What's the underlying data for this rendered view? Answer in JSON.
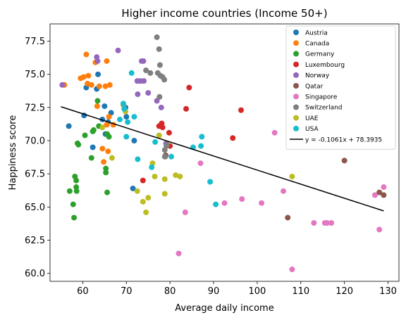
{
  "chart_data": {
    "type": "scatter",
    "title": "Higher income countries (Income 50+)",
    "xlabel": "Average daily income",
    "ylabel": "Happiness score",
    "xlim": [
      52.5,
      132.5
    ],
    "ylim": [
      59.4,
      78.8
    ],
    "xticks": [
      60,
      70,
      80,
      90,
      100,
      110,
      120,
      130
    ],
    "yticks": [
      60.0,
      62.5,
      65.0,
      67.5,
      70.0,
      72.5,
      75.0,
      77.5
    ],
    "grid": false,
    "legend_position": "top-right",
    "series": [
      {
        "name": "Austria",
        "color": "#1f77b4",
        "points": [
          [
            56.8,
            71.1
          ],
          [
            60.3,
            71.9
          ],
          [
            60.8,
            74.0
          ],
          [
            62.3,
            69.5
          ],
          [
            63.2,
            73.9
          ],
          [
            63.5,
            75.0
          ],
          [
            64.5,
            71.6
          ],
          [
            65.0,
            72.6
          ],
          [
            65.2,
            70.5
          ],
          [
            65.8,
            71.4
          ],
          [
            66.5,
            72.1
          ],
          [
            69.8,
            72.5
          ],
          [
            70.0,
            71.8
          ],
          [
            71.5,
            66.4
          ],
          [
            71.8,
            70.0
          ]
        ]
      },
      {
        "name": "Canada",
        "color": "#ff7f0e",
        "points": [
          [
            55.8,
            74.2
          ],
          [
            59.5,
            74.7
          ],
          [
            60.2,
            74.8
          ],
          [
            60.8,
            76.5
          ],
          [
            61.1,
            74.3
          ],
          [
            61.3,
            74.9
          ],
          [
            62.0,
            74.2
          ],
          [
            62.9,
            75.9
          ],
          [
            63.3,
            72.6
          ],
          [
            63.8,
            74.1
          ],
          [
            64.5,
            69.4
          ],
          [
            64.8,
            68.4
          ],
          [
            65.2,
            74.1
          ],
          [
            65.5,
            76.0
          ],
          [
            65.5,
            71.2
          ],
          [
            65.8,
            69.2
          ],
          [
            66.0,
            71.8
          ],
          [
            66.2,
            74.2
          ],
          [
            67.0,
            71.2
          ],
          [
            69.3,
            72.7
          ]
        ]
      },
      {
        "name": "Germany",
        "color": "#2ca02c",
        "points": [
          [
            57.0,
            66.2
          ],
          [
            57.8,
            65.2
          ],
          [
            58.0,
            64.2
          ],
          [
            58.2,
            67.3
          ],
          [
            58.5,
            66.5
          ],
          [
            58.5,
            67.0
          ],
          [
            58.6,
            66.2
          ],
          [
            58.8,
            69.8
          ],
          [
            59.0,
            69.7
          ],
          [
            60.5,
            70.4
          ],
          [
            62.0,
            68.7
          ],
          [
            62.3,
            70.7
          ],
          [
            62.5,
            70.8
          ],
          [
            63.4,
            73.0
          ],
          [
            63.7,
            71.1
          ],
          [
            65.3,
            67.6
          ],
          [
            65.3,
            67.9
          ],
          [
            65.6,
            70.5
          ],
          [
            65.6,
            66.1
          ],
          [
            66.0,
            70.3
          ]
        ]
      },
      {
        "name": "Luxembourg",
        "color": "#d62728",
        "points": [
          [
            73.8,
            67.0
          ],
          [
            77.5,
            71.1
          ],
          [
            78.1,
            71.3
          ],
          [
            78.3,
            71.0
          ],
          [
            78.9,
            68.8
          ],
          [
            79.2,
            69.7
          ],
          [
            79.8,
            70.6
          ],
          [
            80.0,
            69.6
          ],
          [
            83.7,
            72.4
          ],
          [
            84.4,
            74.0
          ],
          [
            94.4,
            70.2
          ],
          [
            96.3,
            72.3
          ]
        ]
      },
      {
        "name": "Norway",
        "color": "#9467bd",
        "points": [
          [
            55.3,
            74.2
          ],
          [
            63.2,
            76.3
          ],
          [
            63.4,
            76.0
          ],
          [
            68.1,
            76.8
          ],
          [
            72.5,
            74.5
          ],
          [
            72.6,
            73.5
          ],
          [
            73.2,
            74.5
          ],
          [
            73.5,
            76.0
          ],
          [
            73.9,
            76.0
          ],
          [
            75.0,
            73.6
          ],
          [
            77.0,
            73.0
          ],
          [
            78.0,
            72.5
          ],
          [
            79.1,
            69.8
          ],
          [
            74.0,
            74.5
          ]
        ]
      },
      {
        "name": "Qatar",
        "color": "#8c564b",
        "points": [
          [
            79.0,
            68.9
          ],
          [
            107.0,
            64.2
          ],
          [
            120.0,
            68.5
          ],
          [
            128.0,
            66.1
          ],
          [
            129.0,
            65.9
          ]
        ]
      },
      {
        "name": "Singapore",
        "color": "#e377c2",
        "points": [
          [
            82.0,
            61.5
          ],
          [
            83.5,
            64.6
          ],
          [
            87.0,
            68.3
          ],
          [
            92.5,
            65.3
          ],
          [
            96.5,
            65.6
          ],
          [
            101.0,
            65.3
          ],
          [
            104.0,
            70.6
          ],
          [
            106.0,
            66.2
          ],
          [
            108.0,
            60.3
          ],
          [
            113.0,
            63.8
          ],
          [
            115.5,
            63.8
          ],
          [
            116.0,
            63.8
          ],
          [
            117.0,
            63.8
          ],
          [
            127.0,
            65.9
          ],
          [
            128.0,
            63.3
          ],
          [
            129.0,
            66.5
          ]
        ]
      },
      {
        "name": "Switzerland",
        "color": "#7f7f7f",
        "points": [
          [
            74.5,
            75.3
          ],
          [
            75.5,
            75.1
          ],
          [
            77.0,
            77.8
          ],
          [
            77.2,
            75.1
          ],
          [
            77.5,
            76.9
          ],
          [
            77.6,
            73.3
          ],
          [
            77.7,
            75.7
          ],
          [
            77.8,
            74.9
          ],
          [
            78.3,
            74.8
          ],
          [
            78.7,
            74.6
          ],
          [
            78.8,
            68.8
          ],
          [
            78.8,
            69.3
          ],
          [
            79.2,
            69.6
          ],
          [
            79.3,
            69.7
          ]
        ]
      },
      {
        "name": "UAE",
        "color": "#bcbd22",
        "points": [
          [
            64.5,
            71.0
          ],
          [
            66.7,
            68.7
          ],
          [
            69.8,
            72.2
          ],
          [
            72.5,
            66.2
          ],
          [
            73.8,
            65.4
          ],
          [
            74.5,
            64.6
          ],
          [
            75.0,
            65.7
          ],
          [
            76.0,
            68.3
          ],
          [
            76.5,
            67.3
          ],
          [
            77.5,
            70.4
          ],
          [
            78.8,
            67.1
          ],
          [
            78.8,
            66.0
          ],
          [
            81.3,
            67.4
          ],
          [
            82.3,
            67.3
          ],
          [
            108.0,
            67.3
          ]
        ]
      },
      {
        "name": "USA",
        "color": "#17becf",
        "points": [
          [
            68.5,
            71.6
          ],
          [
            69.3,
            72.8
          ],
          [
            69.5,
            72.4
          ],
          [
            70.0,
            70.3
          ],
          [
            70.3,
            71.4
          ],
          [
            71.2,
            75.1
          ],
          [
            71.8,
            71.8
          ],
          [
            72.6,
            68.6
          ],
          [
            75.8,
            68.0
          ],
          [
            76.6,
            69.9
          ],
          [
            80.3,
            68.8
          ],
          [
            85.3,
            69.5
          ],
          [
            87.1,
            69.6
          ],
          [
            87.3,
            70.3
          ],
          [
            89.2,
            66.9
          ],
          [
            90.5,
            65.2
          ]
        ]
      }
    ],
    "trendline": {
      "label": "y = -0.1061x + 78.3935",
      "slope": -0.1061,
      "intercept": 78.3935,
      "x_range": [
        55,
        129
      ],
      "color": "#000000"
    }
  }
}
